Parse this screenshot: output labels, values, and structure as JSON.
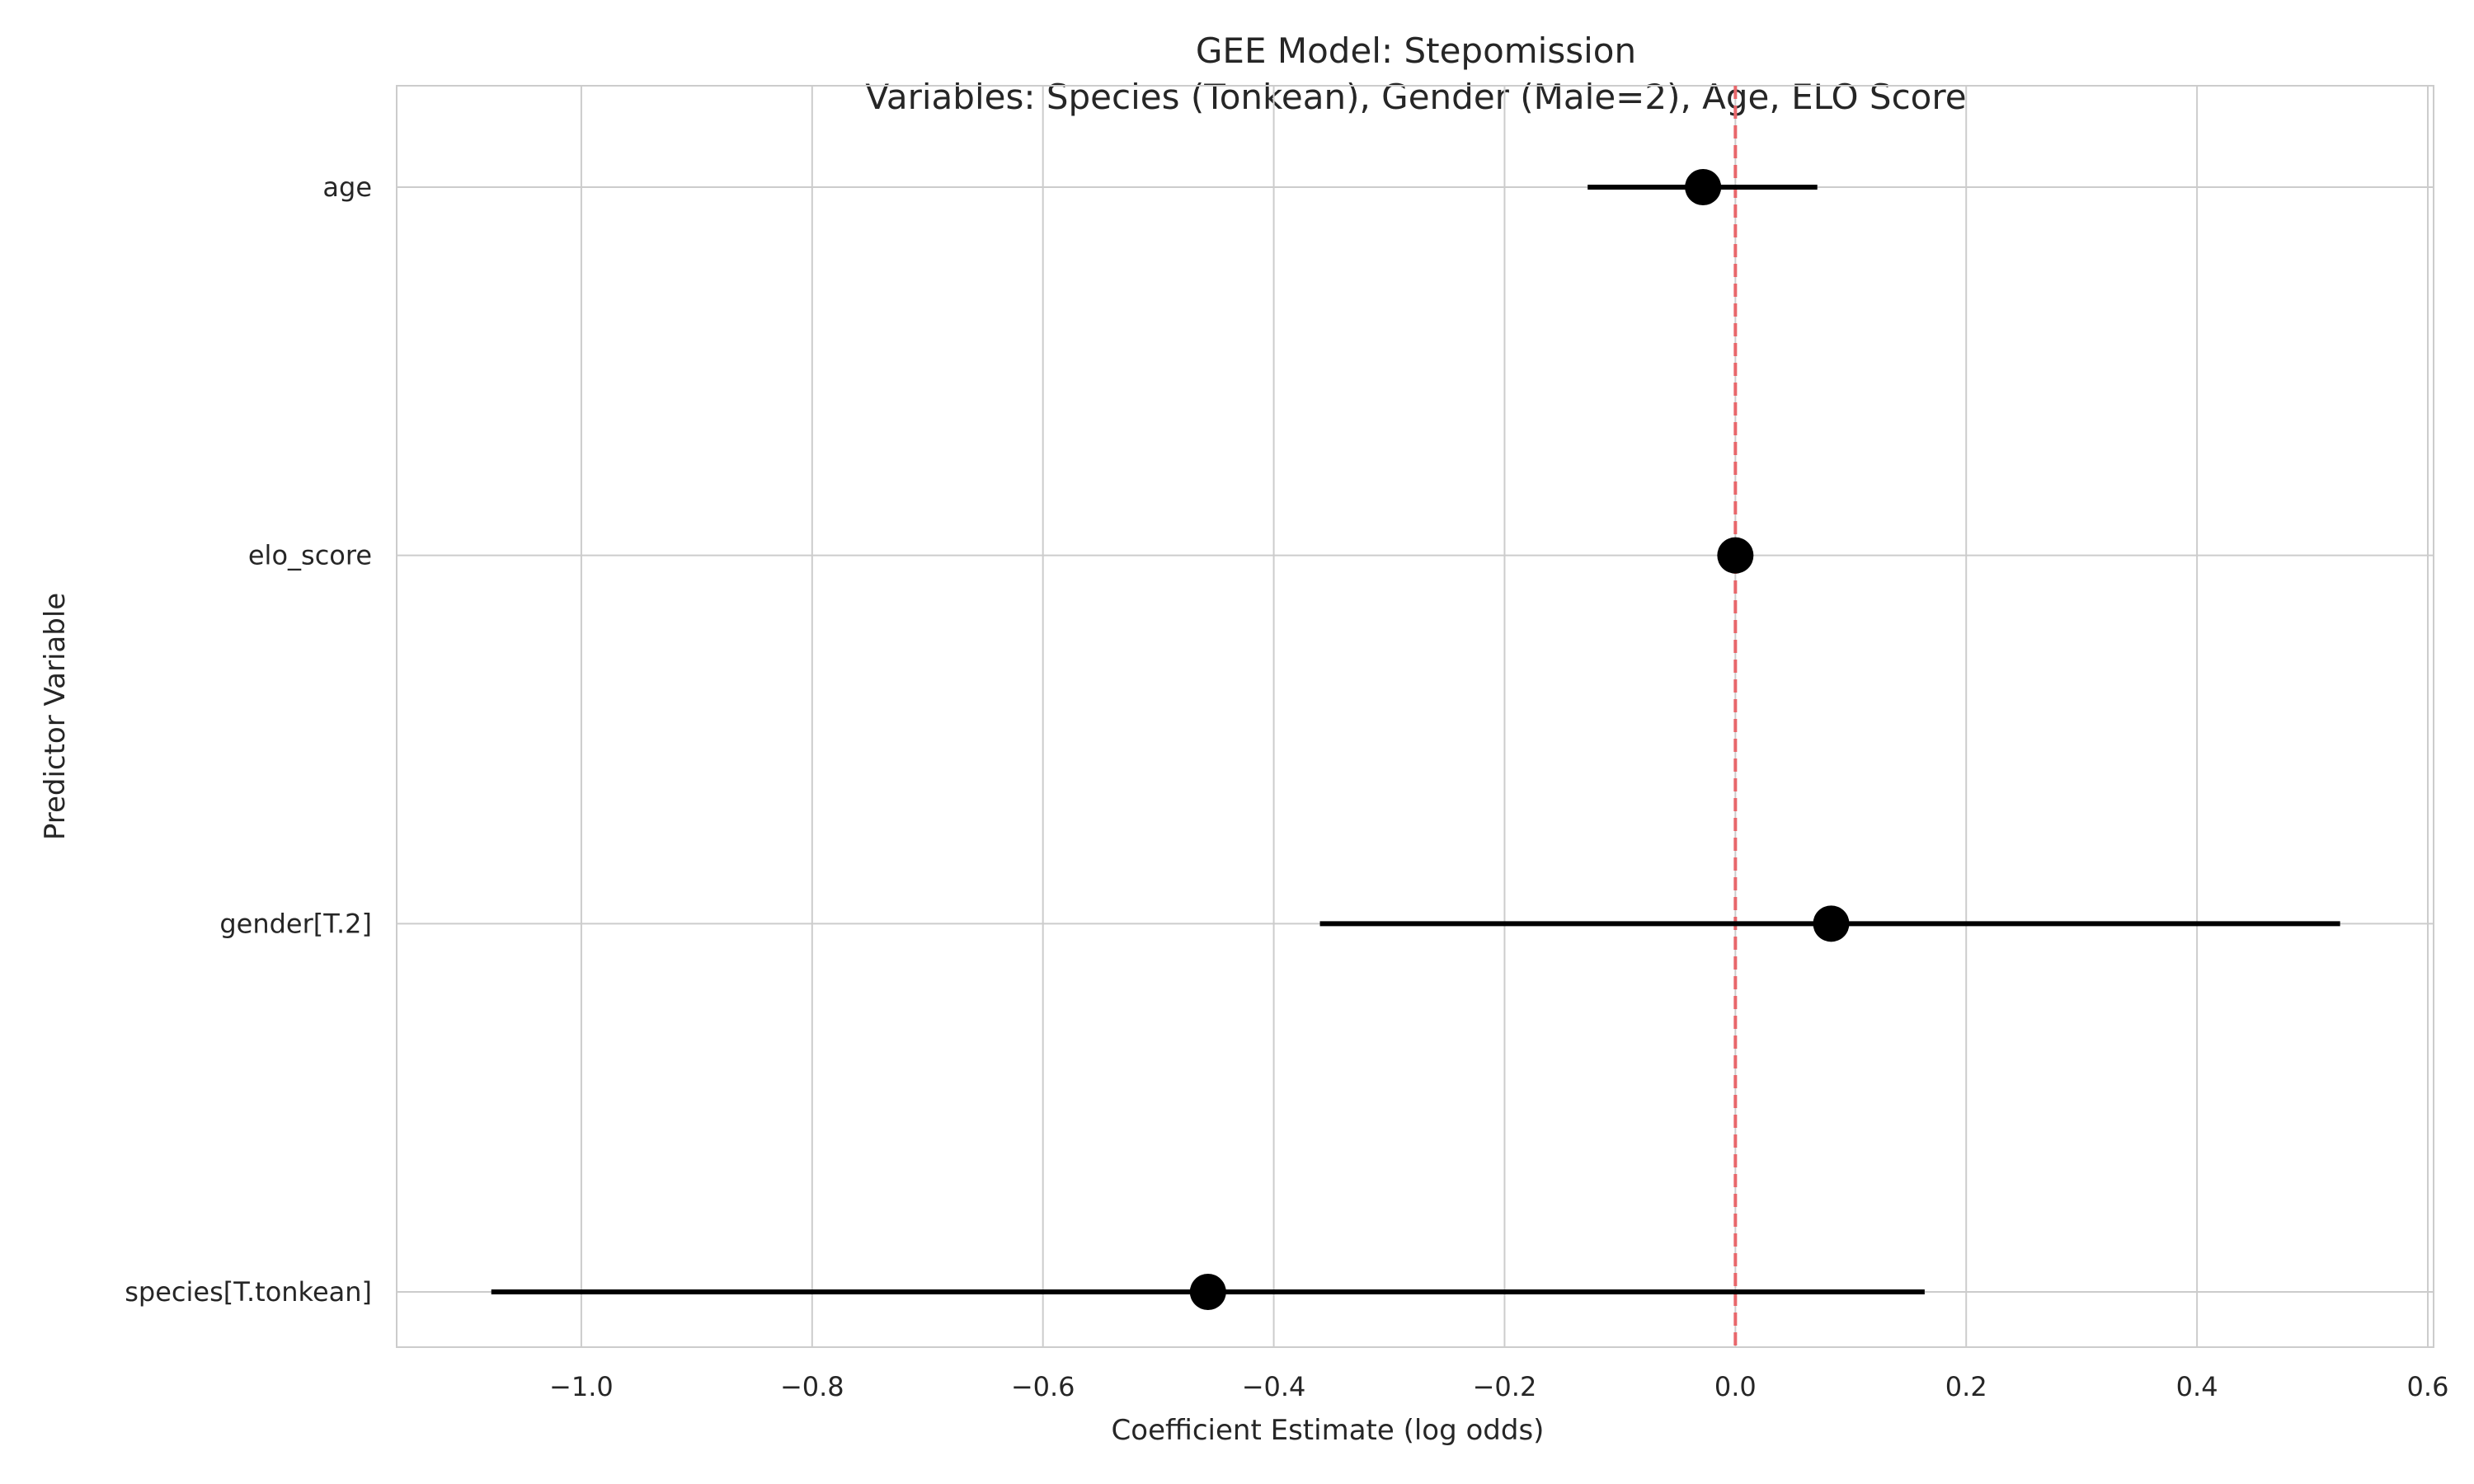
{
  "chart_data": {
    "type": "scatter",
    "title": "GEE Model: Stepomission",
    "subtitle": "Variables: Species (Tonkean), Gender (Male=2), Age, ELO Score",
    "xlabel": "Coefficient Estimate (log odds)",
    "ylabel": "Predictor Variable",
    "xlim": [
      -1.16,
      0.605
    ],
    "x_ticks": [
      -1.0,
      -0.8,
      -0.6,
      -0.4,
      -0.2,
      0.0,
      0.2,
      0.4,
      0.6
    ],
    "x_tick_labels": [
      "−1.0",
      "−0.8",
      "−0.6",
      "−0.4",
      "−0.2",
      "0.0",
      "0.2",
      "0.4",
      "0.6"
    ],
    "categories": [
      "age",
      "elo_score",
      "gender[T.2]",
      "species[T.tonkean]"
    ],
    "points": [
      {
        "label": "age",
        "estimate": -0.028,
        "ci_low": -0.128,
        "ci_high": 0.071
      },
      {
        "label": "elo_score",
        "estimate": 0.0,
        "ci_low": -0.002,
        "ci_high": 0.002
      },
      {
        "label": "gender[T.2]",
        "estimate": 0.083,
        "ci_low": -0.36,
        "ci_high": 0.524
      },
      {
        "label": "species[T.tonkean]",
        "estimate": -0.457,
        "ci_low": -1.078,
        "ci_high": 0.164
      }
    ],
    "reference_line": {
      "x": 0.0,
      "color": "#e8676b",
      "style": "dashed"
    },
    "grid": true,
    "colors": {
      "point": "#000000",
      "ci": "#000000",
      "grid": "#cccccc",
      "axis": "#cccccc"
    }
  }
}
